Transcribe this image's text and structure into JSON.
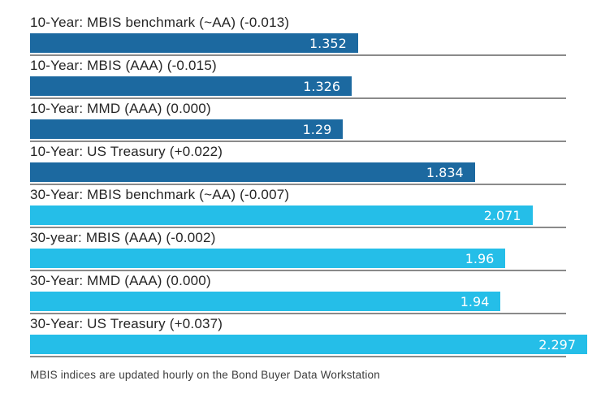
{
  "chart_data": {
    "type": "bar",
    "orientation": "horizontal",
    "title": "",
    "xlabel": "",
    "ylabel": "",
    "xlim": [
      0,
      2.297
    ],
    "grid": "row-separators",
    "legend": "none",
    "bars": [
      {
        "label": "10-Year: MBIS benchmark (~AA) (-0.013)",
        "value": 1.352,
        "value_label": "1.352",
        "series": "10-year"
      },
      {
        "label": "10-Year: MBIS (AAA) (-0.015)",
        "value": 1.326,
        "value_label": "1.326",
        "series": "10-year"
      },
      {
        "label": "10-Year: MMD (AAA) (0.000)",
        "value": 1.29,
        "value_label": "1.29",
        "series": "10-year"
      },
      {
        "label": "10-Year: US Treasury (+0.022)",
        "value": 1.834,
        "value_label": "1.834",
        "series": "10-year"
      },
      {
        "label": "30-Year: MBIS benchmark (~AA) (-0.007)",
        "value": 2.071,
        "value_label": "2.071",
        "series": "30-year"
      },
      {
        "label": "30-year: MBIS (AAA) (-0.002)",
        "value": 1.96,
        "value_label": "1.96",
        "series": "30-year"
      },
      {
        "label": "30-Year: MMD (AAA) (0.000)",
        "value": 1.94,
        "value_label": "1.94",
        "series": "30-year"
      },
      {
        "label": "30-Year: US Treasury (+0.037)",
        "value": 2.297,
        "value_label": "2.297",
        "series": "30-year"
      }
    ],
    "footnote": "MBIS indices are updated hourly on the Bond Buyer Data Workstation"
  },
  "colors": {
    "bar_10_year": "#1c69a0",
    "bar_30_year": "#25bee8",
    "separator": "#8a8a8a",
    "label_text": "#252525",
    "value_text": "#ffffff",
    "background": "#ffffff"
  }
}
